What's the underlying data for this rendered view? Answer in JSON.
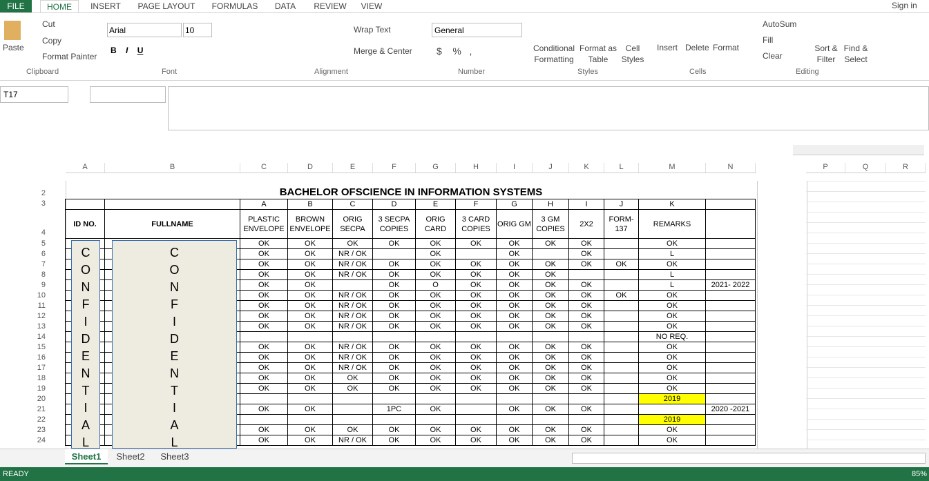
{
  "tabs": [
    "FILE",
    "HOME",
    "INSERT",
    "PAGE LAYOUT",
    "FORMULAS",
    "DATA",
    "REVIEW",
    "VIEW"
  ],
  "sign_in": "Sign in",
  "ribbon": {
    "clipboard": {
      "label": "Clipboard",
      "paste": "Paste",
      "cut": "Cut",
      "copy": "Copy",
      "format_painter": "Format Painter"
    },
    "font": {
      "label": "Font",
      "name": "Arial",
      "size": "10"
    },
    "alignment": {
      "label": "Alignment",
      "wrap_text": "Wrap Text",
      "merge_center": "Merge & Center"
    },
    "number": {
      "label": "Number",
      "format": "General"
    },
    "styles": {
      "label": "Styles",
      "conditional": "Conditional Formatting",
      "format_table": "Format as Table",
      "cell_styles": "Cell Styles"
    },
    "cells": {
      "label": "Cells",
      "insert": "Insert",
      "delete": "Delete",
      "format": "Format"
    },
    "editing": {
      "label": "Editing",
      "autosum": "AutoSum",
      "fill": "Fill",
      "clear": "Clear",
      "sort": "Sort & Filter",
      "find": "Find & Select"
    }
  },
  "name_box": "T17",
  "sheet": {
    "column_headers": [
      "A",
      "B",
      "C",
      "D",
      "E",
      "F",
      "G",
      "H",
      "I",
      "J",
      "K",
      "L",
      "M",
      "N"
    ],
    "extra_columns": [
      "P",
      "Q",
      "R"
    ],
    "title_row": "2",
    "title": "BACHELOR OFSCIENCE IN INFORMATION SYSTEMS",
    "letter_row": "3",
    "letters": [
      "A",
      "B",
      "C",
      "D",
      "E",
      "F",
      "G",
      "H",
      "I",
      "J",
      "K"
    ],
    "header_row": "4",
    "headers": [
      "ID NO.",
      "FULLNAME",
      "PLASTIC ENVELOPE",
      "BROWN ENVELOPE",
      "ORIG SECPA",
      "3 SECPA COPIES",
      "ORIG CARD",
      "3 CARD COPIES",
      "ORIG GM",
      "3 GM COPIES",
      "2X2",
      "FORM-137",
      "REMARKS"
    ],
    "confidential": [
      "C",
      "O",
      "N",
      "F",
      "I",
      "D",
      "E",
      "N",
      "T",
      "I",
      "A",
      "L"
    ],
    "highlight_color": "#ffff00",
    "rows": [
      {
        "num": "5",
        "cells": [
          "OK",
          "OK",
          "OK",
          "OK",
          "OK",
          "OK",
          "OK",
          "OK",
          "OK",
          "",
          "OK",
          ""
        ]
      },
      {
        "num": "6",
        "cells": [
          "OK",
          "OK",
          "NR / OK",
          "",
          "OK",
          "",
          "OK",
          "",
          "OK",
          "",
          "L",
          ""
        ]
      },
      {
        "num": "7",
        "cells": [
          "OK",
          "OK",
          "NR / OK",
          "OK",
          "OK",
          "OK",
          "OK",
          "OK",
          "OK",
          "OK",
          "OK",
          ""
        ]
      },
      {
        "num": "8",
        "cells": [
          "OK",
          "OK",
          "NR / OK",
          "OK",
          "OK",
          "OK",
          "OK",
          "OK",
          "",
          "",
          "L",
          ""
        ]
      },
      {
        "num": "9",
        "cells": [
          "OK",
          "OK",
          "",
          "OK",
          "O",
          "OK",
          "OK",
          "OK",
          "OK",
          "",
          "L",
          "2021- 2022"
        ]
      },
      {
        "num": "10",
        "cells": [
          "OK",
          "OK",
          "NR / OK",
          "OK",
          "OK",
          "OK",
          "OK",
          "OK",
          "OK",
          "OK",
          "OK",
          ""
        ]
      },
      {
        "num": "11",
        "cells": [
          "OK",
          "OK",
          "NR / OK",
          "OK",
          "OK",
          "OK",
          "OK",
          "OK",
          "OK",
          "",
          "OK",
          ""
        ]
      },
      {
        "num": "12",
        "cells": [
          "OK",
          "OK",
          "NR / OK",
          "OK",
          "OK",
          "OK",
          "OK",
          "OK",
          "OK",
          "",
          "OK",
          ""
        ]
      },
      {
        "num": "13",
        "cells": [
          "OK",
          "OK",
          "NR / OK",
          "OK",
          "OK",
          "OK",
          "OK",
          "OK",
          "OK",
          "",
          "OK",
          ""
        ]
      },
      {
        "num": "14",
        "cells": [
          "",
          "",
          "",
          "",
          "",
          "",
          "",
          "",
          "",
          "",
          "NO REQ.",
          ""
        ]
      },
      {
        "num": "15",
        "cells": [
          "OK",
          "OK",
          "NR / OK",
          "OK",
          "OK",
          "OK",
          "OK",
          "OK",
          "OK",
          "",
          "OK",
          ""
        ]
      },
      {
        "num": "16",
        "cells": [
          "OK",
          "OK",
          "NR / OK",
          "OK",
          "OK",
          "OK",
          "OK",
          "OK",
          "OK",
          "",
          "OK",
          ""
        ]
      },
      {
        "num": "17",
        "cells": [
          "OK",
          "OK",
          "NR / OK",
          "OK",
          "OK",
          "OK",
          "OK",
          "OK",
          "OK",
          "",
          "OK",
          ""
        ]
      },
      {
        "num": "18",
        "cells": [
          "OK",
          "OK",
          "OK",
          "OK",
          "OK",
          "OK",
          "OK",
          "OK",
          "OK",
          "",
          "OK",
          ""
        ]
      },
      {
        "num": "19",
        "cells": [
          "OK",
          "OK",
          "OK",
          "OK",
          "OK",
          "OK",
          "OK",
          "OK",
          "OK",
          "",
          "OK",
          ""
        ]
      },
      {
        "num": "20",
        "cells": [
          "",
          "",
          "",
          "",
          "",
          "",
          "",
          "",
          "",
          "",
          "2019",
          ""
        ],
        "highlight": true
      },
      {
        "num": "21",
        "cells": [
          "OK",
          "OK",
          "",
          "1PC",
          "OK",
          "",
          "OK",
          "OK",
          "OK",
          "",
          "",
          "2020 -2021"
        ]
      },
      {
        "num": "22",
        "cells": [
          "",
          "",
          "",
          "",
          "",
          "",
          "",
          "",
          "",
          "",
          "2019",
          ""
        ],
        "highlight": true
      },
      {
        "num": "23",
        "cells": [
          "OK",
          "OK",
          "OK",
          "OK",
          "OK",
          "OK",
          "OK",
          "OK",
          "OK",
          "",
          "OK",
          ""
        ]
      },
      {
        "num": "24",
        "cells": [
          "OK",
          "OK",
          "NR / OK",
          "OK",
          "OK",
          "OK",
          "OK",
          "OK",
          "OK",
          "",
          "OK",
          ""
        ]
      }
    ]
  },
  "sheet_tabs": [
    "Sheet1",
    "Sheet2",
    "Sheet3"
  ],
  "status": "READY",
  "zoom": "85%"
}
